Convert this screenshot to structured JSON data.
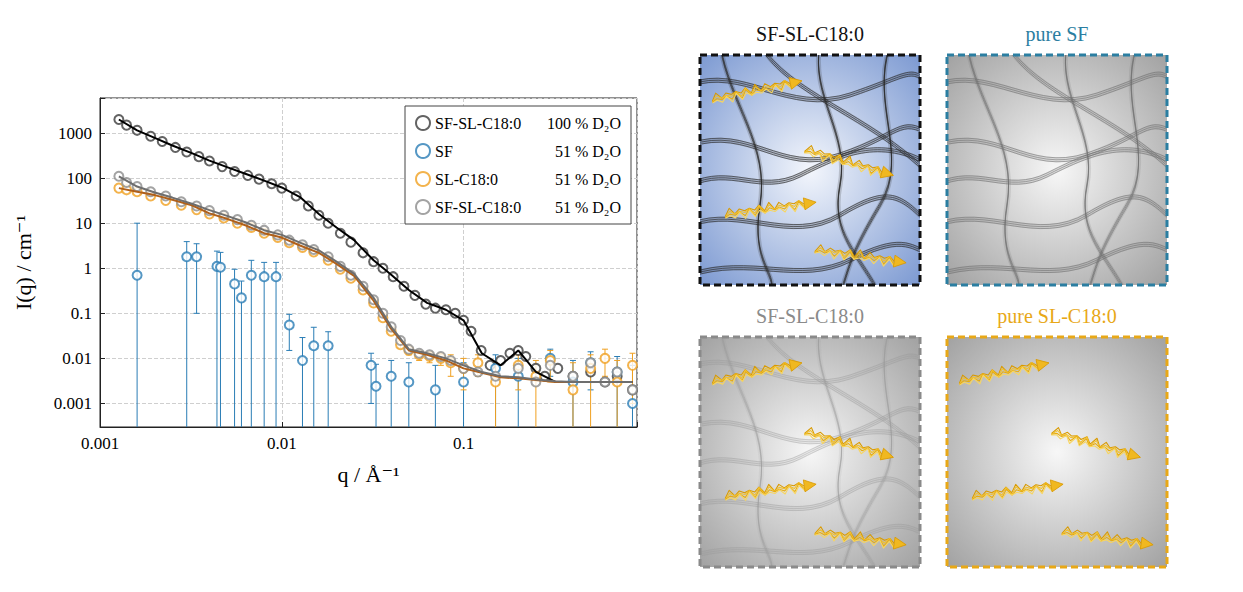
{
  "chart_data": {
    "type": "scatter",
    "log": true,
    "grid": true,
    "legend": "upper right",
    "marker": "open circle",
    "x_label": "q / Å⁻¹",
    "y_label": "I(q) / cm⁻¹",
    "xlim": [
      0.001,
      0.9
    ],
    "xticks": [
      0.001,
      0.01,
      0.1
    ],
    "ylim": [
      0.0003,
      6000
    ],
    "yticks": [
      0.001,
      0.01,
      0.1,
      1,
      10,
      100,
      1000
    ],
    "series": [
      {
        "name": "SF-SL-C18:0",
        "contrast": "100 % D₂O",
        "color": "#3c3c3c",
        "x": [
          0.00127,
          0.0014,
          0.0016,
          0.0019,
          0.0022,
          0.0026,
          0.003,
          0.0035,
          0.004,
          0.0047,
          0.0055,
          0.0065,
          0.0075,
          0.0088,
          0.01,
          0.012,
          0.014,
          0.016,
          0.018,
          0.021,
          0.024,
          0.028,
          0.032,
          0.036,
          0.041,
          0.047,
          0.054,
          0.062,
          0.07,
          0.08,
          0.09,
          0.1,
          0.11,
          0.125,
          0.14,
          0.16,
          0.18,
          0.2,
          0.22,
          0.25,
          0.28,
          0.33,
          0.4,
          0.5,
          0.6,
          0.7,
          0.85
        ],
        "values": [
          2000,
          1500,
          1150,
          850,
          650,
          480,
          380,
          300,
          240,
          180,
          140,
          115,
          95,
          75,
          60,
          40,
          24,
          15,
          10,
          6,
          3.8,
          2.2,
          1.4,
          1.0,
          0.65,
          0.4,
          0.25,
          0.16,
          0.13,
          0.12,
          0.1,
          0.07,
          0.04,
          0.015,
          0.007,
          0.009,
          0.013,
          0.015,
          0.011,
          0.006,
          0.004,
          0.006,
          0.004,
          0.005,
          0.003,
          0.004,
          0.002
        ],
        "fit": {
          "color": "#000000",
          "x": [
            0.00127,
            0.0016,
            0.002,
            0.0025,
            0.0032,
            0.004,
            0.005,
            0.0063,
            0.008,
            0.01,
            0.0126,
            0.016,
            0.02,
            0.025,
            0.032,
            0.04,
            0.05,
            0.063,
            0.08,
            0.1,
            0.126,
            0.16,
            0.2,
            0.25,
            0.32,
            0.4,
            0.5,
            0.63,
            0.85
          ],
          "values": [
            2000,
            1150,
            780,
            530,
            360,
            245,
            175,
            125,
            88,
            62,
            38,
            16,
            8,
            4.2,
            1.5,
            0.72,
            0.33,
            0.17,
            0.12,
            0.07,
            0.013,
            0.007,
            0.015,
            0.005,
            0.003,
            0.003,
            0.003,
            0.003,
            0.003
          ]
        }
      },
      {
        "name": "SF",
        "contrast": "51 % D₂O",
        "color": "#2a7db5",
        "x": [
          0.0016,
          0.003,
          0.0034,
          0.0044,
          0.0046,
          0.0055,
          0.006,
          0.0068,
          0.008,
          0.0093,
          0.011,
          0.013,
          0.015,
          0.018,
          0.031,
          0.033,
          0.04,
          0.05,
          0.07,
          0.1,
          0.15,
          0.2,
          0.3,
          0.4,
          0.5,
          0.7,
          0.85
        ],
        "values": [
          0.7,
          1.8,
          1.8,
          1.1,
          1.05,
          0.45,
          0.22,
          0.7,
          0.65,
          0.65,
          0.055,
          0.009,
          0.019,
          0.019,
          0.007,
          0.0024,
          0.004,
          0.003,
          0.002,
          0.003,
          0.006,
          0.004,
          0.01,
          0.003,
          0.008,
          0.005,
          0.001
        ],
        "errors": [
          9.3,
          2.1,
          1.7,
          1.3,
          1.2,
          0.5,
          0.3,
          0.8,
          0.7,
          0.7,
          0.04,
          0.02,
          0.03,
          0.02,
          0.006,
          0.005,
          0.005,
          0.005,
          0.005,
          0.005,
          0.006,
          0.006,
          0.006,
          0.006,
          0.006,
          0.006,
          0.006
        ]
      },
      {
        "name": "SL-C18:0",
        "contrast": "51 % D₂O",
        "color": "#f0a020",
        "x": [
          0.00127,
          0.0014,
          0.0016,
          0.0019,
          0.0023,
          0.0028,
          0.0034,
          0.004,
          0.0048,
          0.0057,
          0.0068,
          0.008,
          0.0095,
          0.011,
          0.013,
          0.015,
          0.018,
          0.021,
          0.024,
          0.028,
          0.032,
          0.036,
          0.04,
          0.045,
          0.05,
          0.057,
          0.065,
          0.075,
          0.085,
          0.1,
          0.12,
          0.15,
          0.2,
          0.25,
          0.3,
          0.4,
          0.5,
          0.6,
          0.7,
          0.85
        ],
        "values": [
          60,
          55,
          50,
          40,
          32,
          25,
          20,
          16,
          13,
          10,
          8,
          6,
          4.8,
          3.7,
          2.9,
          2.3,
          1.5,
          0.95,
          0.6,
          0.33,
          0.17,
          0.08,
          0.04,
          0.02,
          0.015,
          0.012,
          0.011,
          0.01,
          0.008,
          0.006,
          0.008,
          0.003,
          0.007,
          0.004,
          0.009,
          0.002,
          0.006,
          0.01,
          0.003,
          0.007
        ],
        "errors": [
          null,
          null,
          null,
          null,
          null,
          null,
          null,
          null,
          null,
          null,
          null,
          null,
          null,
          null,
          null,
          null,
          null,
          null,
          null,
          null,
          null,
          null,
          0.003,
          0.003,
          0.003,
          0.003,
          0.003,
          0.003,
          0.004,
          0.004,
          0.004,
          0.005,
          0.005,
          0.005,
          0.006,
          0.006,
          0.006,
          0.006,
          0.006,
          0.006
        ],
        "fit": {
          "color": "#b0601a",
          "x": [
            0.00127,
            0.0016,
            0.002,
            0.0025,
            0.0032,
            0.004,
            0.005,
            0.0063,
            0.008,
            0.01,
            0.0126,
            0.016,
            0.02,
            0.025,
            0.032,
            0.04,
            0.05,
            0.063,
            0.08,
            0.1,
            0.126,
            0.16,
            0.2,
            0.25,
            0.32,
            0.4,
            0.5,
            0.63,
            0.85
          ],
          "values": [
            60,
            50,
            42,
            33,
            25,
            16.5,
            12.5,
            9,
            6,
            4.8,
            3.2,
            2.2,
            1.25,
            0.68,
            0.19,
            0.045,
            0.015,
            0.012,
            0.009,
            0.006,
            0.0048,
            0.0038,
            0.0036,
            0.0033,
            0.003,
            0.003,
            0.003,
            0.003,
            0.003
          ]
        }
      },
      {
        "name": "SF-SL-C18:0",
        "contrast": "51 % D₂O",
        "color": "#8c8c8c",
        "x": [
          0.00127,
          0.0014,
          0.0016,
          0.0019,
          0.0023,
          0.0028,
          0.0034,
          0.004,
          0.0048,
          0.0057,
          0.0068,
          0.008,
          0.0095,
          0.011,
          0.013,
          0.015,
          0.018,
          0.021,
          0.024,
          0.028,
          0.032,
          0.036,
          0.04,
          0.045,
          0.05,
          0.057,
          0.065,
          0.075,
          0.085,
          0.1,
          0.12,
          0.15,
          0.2,
          0.25,
          0.3,
          0.4,
          0.5,
          0.6,
          0.7,
          0.85
        ],
        "values": [
          110,
          80,
          65,
          50,
          40,
          30,
          24,
          19,
          15,
          12,
          9,
          7,
          5.5,
          4.2,
          3.3,
          2.6,
          1.8,
          1.1,
          0.7,
          0.4,
          0.2,
          0.1,
          0.05,
          0.025,
          0.016,
          0.013,
          0.012,
          0.011,
          0.009,
          0.006,
          0.005,
          0.004,
          0.006,
          0.003,
          0.007,
          0.004,
          0.008,
          0.003,
          0.005,
          0.002
        ],
        "fit": {
          "color": "#6e6e6e",
          "x": [
            0.00127,
            0.0016,
            0.002,
            0.0025,
            0.0032,
            0.004,
            0.005,
            0.0063,
            0.008,
            0.01,
            0.0126,
            0.016,
            0.02,
            0.025,
            0.032,
            0.04,
            0.05,
            0.063,
            0.08,
            0.1,
            0.126,
            0.16,
            0.2,
            0.25,
            0.32,
            0.4,
            0.5,
            0.63,
            0.85
          ],
          "values": [
            110,
            65,
            48,
            37,
            27,
            19.5,
            14.5,
            10.5,
            7,
            5.5,
            3.7,
            2.5,
            1.4,
            0.75,
            0.22,
            0.05,
            0.016,
            0.013,
            0.01,
            0.007,
            0.005,
            0.004,
            0.0038,
            0.0034,
            0.0031,
            0.003,
            0.003,
            0.003,
            0.003
          ]
        }
      }
    ]
  },
  "panels": [
    {
      "title": "SF-SL-C18:0",
      "color": "#111111"
    },
    {
      "title": "pure SF",
      "color": "#2b7ea1"
    },
    {
      "title": "SF-SL-C18:0",
      "color": "#8a8a8a"
    },
    {
      "title": "pure SL-C18:0",
      "color": "#e8a817"
    }
  ]
}
